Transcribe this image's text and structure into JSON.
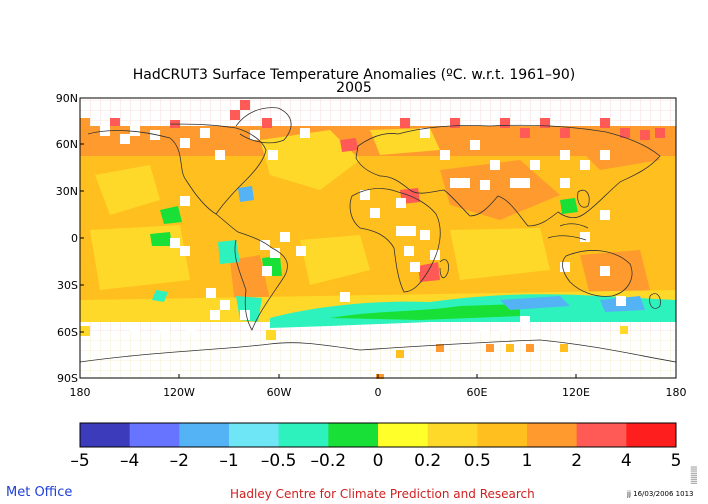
{
  "title": {
    "line1": "HadCRUT3 Surface Temperature Anomalies (ºC. w.r.t. 1961–90)",
    "line2": "2005"
  },
  "lat_labels": [
    "90N",
    "60N",
    "30N",
    "0",
    "30S",
    "60S",
    "90S"
  ],
  "lon_labels": [
    "180",
    "120W",
    "60W",
    "0",
    "60E",
    "120E",
    "180"
  ],
  "color_scale": {
    "values": [
      "–5",
      "–4",
      "–2",
      "–1",
      "–0.5",
      "–0.2",
      "0",
      "0.2",
      "0.5",
      "1",
      "2",
      "4",
      "5"
    ],
    "colors": [
      "#3b3bbb",
      "#6674ff",
      "#53b3f5",
      "#6fe6f5",
      "#2ef2bd",
      "#19e036",
      "#ffff2a",
      "#ffd92a",
      "#ffbf1e",
      "#ff9a2e",
      "#ff5a55",
      "#ff1e1e"
    ]
  },
  "footer": {
    "left": "Met Office",
    "center": "Hadley Centre for Climate Prediction and Research",
    "right": "jj  16/03/2006 1013"
  },
  "side_text": "|||||||||"
}
